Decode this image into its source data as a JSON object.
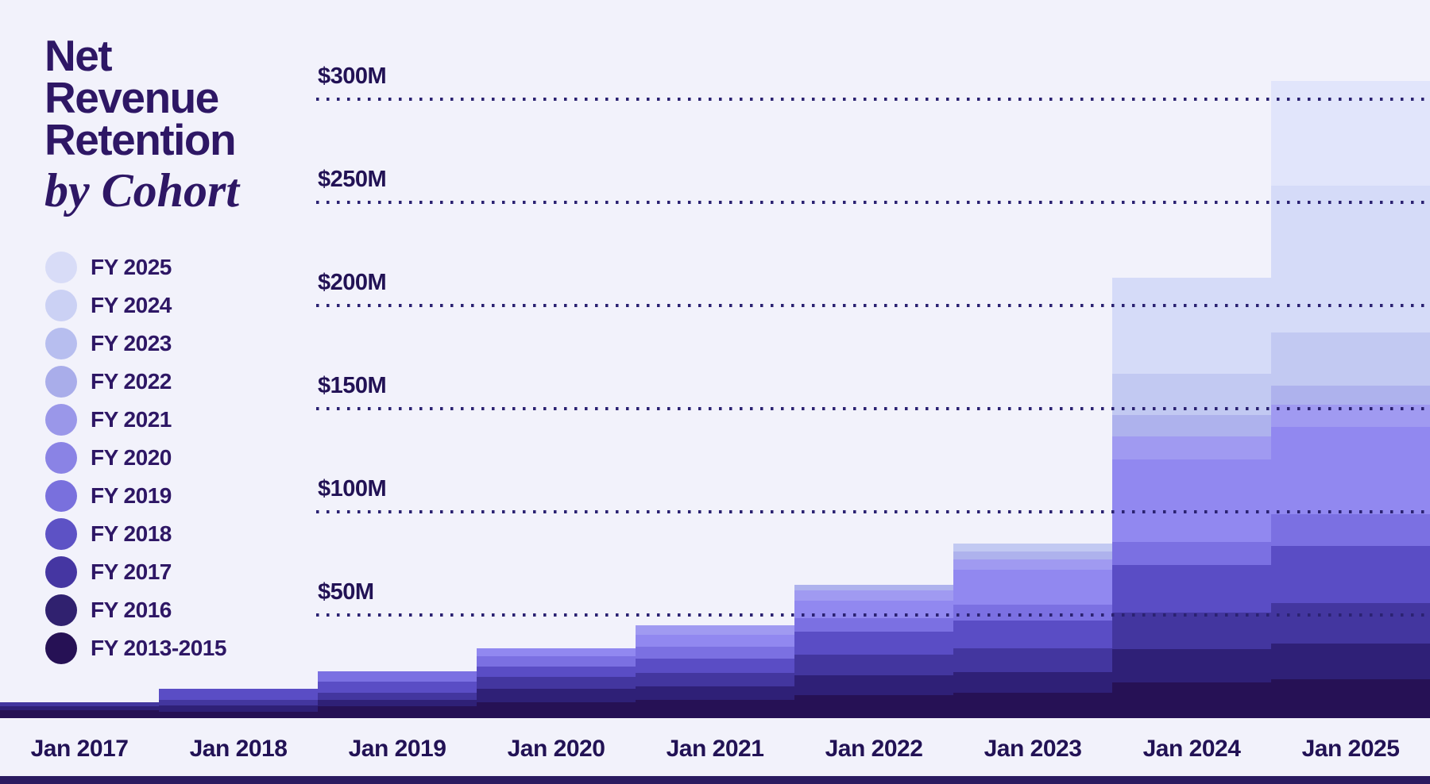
{
  "title": {
    "lines": [
      "Net",
      "Revenue",
      "Retention"
    ],
    "subtitle": "by Cohort"
  },
  "legend": {
    "items": [
      {
        "label": "FY 2025",
        "color": "#D8DCF7"
      },
      {
        "label": "FY 2024",
        "color": "#CBD1F4"
      },
      {
        "label": "FY 2023",
        "color": "#B7BEEF"
      },
      {
        "label": "FY 2022",
        "color": "#A9ADEA"
      },
      {
        "label": "FY 2021",
        "color": "#9A97E9"
      },
      {
        "label": "FY 2020",
        "color": "#8A83E5"
      },
      {
        "label": "FY 2019",
        "color": "#7970DD"
      },
      {
        "label": "FY 2018",
        "color": "#5D52C5"
      },
      {
        "label": "FY 2017",
        "color": "#4536A2"
      },
      {
        "label": "FY 2016",
        "color": "#30216F"
      },
      {
        "label": "FY 2013-2015",
        "color": "#261155"
      }
    ]
  },
  "chart_data": {
    "type": "bar",
    "stacked": true,
    "step_columns": true,
    "title": "Net Revenue Retention by Cohort",
    "xlabel": "",
    "ylabel": "",
    "unit": "$M",
    "categories": [
      "Jan 2017",
      "Jan 2018",
      "Jan 2019",
      "Jan 2020",
      "Jan 2021",
      "Jan 2022",
      "Jan 2023",
      "Jan 2024",
      "Jan 2025"
    ],
    "series": [
      {
        "name": "FY 2013-2015",
        "color": "#261155",
        "values": [
          3.8,
          3.2,
          5.8,
          7.7,
          8.8,
          11.2,
          12.4,
          17.3,
          18.8
        ]
      },
      {
        "name": "FY 2016",
        "color": "#2F2077",
        "values": [
          2.0,
          3.0,
          3.0,
          6.5,
          6.5,
          9.6,
          10.0,
          16.2,
          17.3
        ]
      },
      {
        "name": "FY 2017",
        "color": "#43369F",
        "values": [
          2.0,
          2.6,
          3.5,
          5.8,
          6.5,
          10.0,
          11.5,
          17.7,
          19.6
        ]
      },
      {
        "name": "FY 2018",
        "color": "#5A4DC5",
        "values": [
          0,
          5.4,
          5.4,
          5.2,
          6.9,
          11.2,
          13.5,
          23.0,
          27.7
        ]
      },
      {
        "name": "FY 2019",
        "color": "#7B70E2",
        "values": [
          0,
          0,
          5.0,
          5.0,
          5.8,
          6.5,
          7.7,
          11.2,
          15.4
        ]
      },
      {
        "name": "FY 2020",
        "color": "#9188F0",
        "values": [
          0,
          0,
          0,
          3.5,
          6.0,
          8.5,
          16.9,
          40.0,
          42.3
        ]
      },
      {
        "name": "FY 2021",
        "color": "#A09AF1",
        "values": [
          0,
          0,
          0,
          0,
          4.5,
          4.8,
          5.0,
          11.2,
          10.8
        ]
      },
      {
        "name": "FY 2022",
        "color": "#AEB2ED",
        "values": [
          0,
          0,
          0,
          0,
          0,
          2.9,
          3.8,
          10.4,
          9.2
        ]
      },
      {
        "name": "FY 2023",
        "color": "#C2C9F2",
        "values": [
          0,
          0,
          0,
          0,
          0,
          0,
          3.8,
          20.0,
          26.0
        ]
      },
      {
        "name": "FY 2024",
        "color": "#D5DBF8",
        "values": [
          0,
          0,
          0,
          0,
          0,
          0,
          0,
          46.5,
          71.0
        ]
      },
      {
        "name": "FY 2025",
        "color": "#E1E5FB",
        "values": [
          0,
          0,
          0,
          0,
          0,
          0,
          0,
          0,
          50.8
        ]
      }
    ],
    "totals": [
      7.8,
      14.2,
      22.7,
      33.7,
      45.0,
      64.7,
      84.6,
      213.5,
      308.9
    ],
    "y_ticks": [
      {
        "label": "$50M",
        "value": 50
      },
      {
        "label": "$100M",
        "value": 100
      },
      {
        "label": "$150M",
        "value": 150
      },
      {
        "label": "$200M",
        "value": 200
      },
      {
        "label": "$250M",
        "value": 250
      },
      {
        "label": "$300M",
        "value": 300
      }
    ],
    "ylim": [
      0,
      348
    ],
    "grid": "dotted horizontal",
    "legend_position": "left"
  },
  "colors": {
    "background": "#F2F2FB",
    "title_text": "#2E1765",
    "axis_text": "#221255",
    "grid_dot": "#2B2272",
    "footer_bar": "#2B1B60"
  }
}
